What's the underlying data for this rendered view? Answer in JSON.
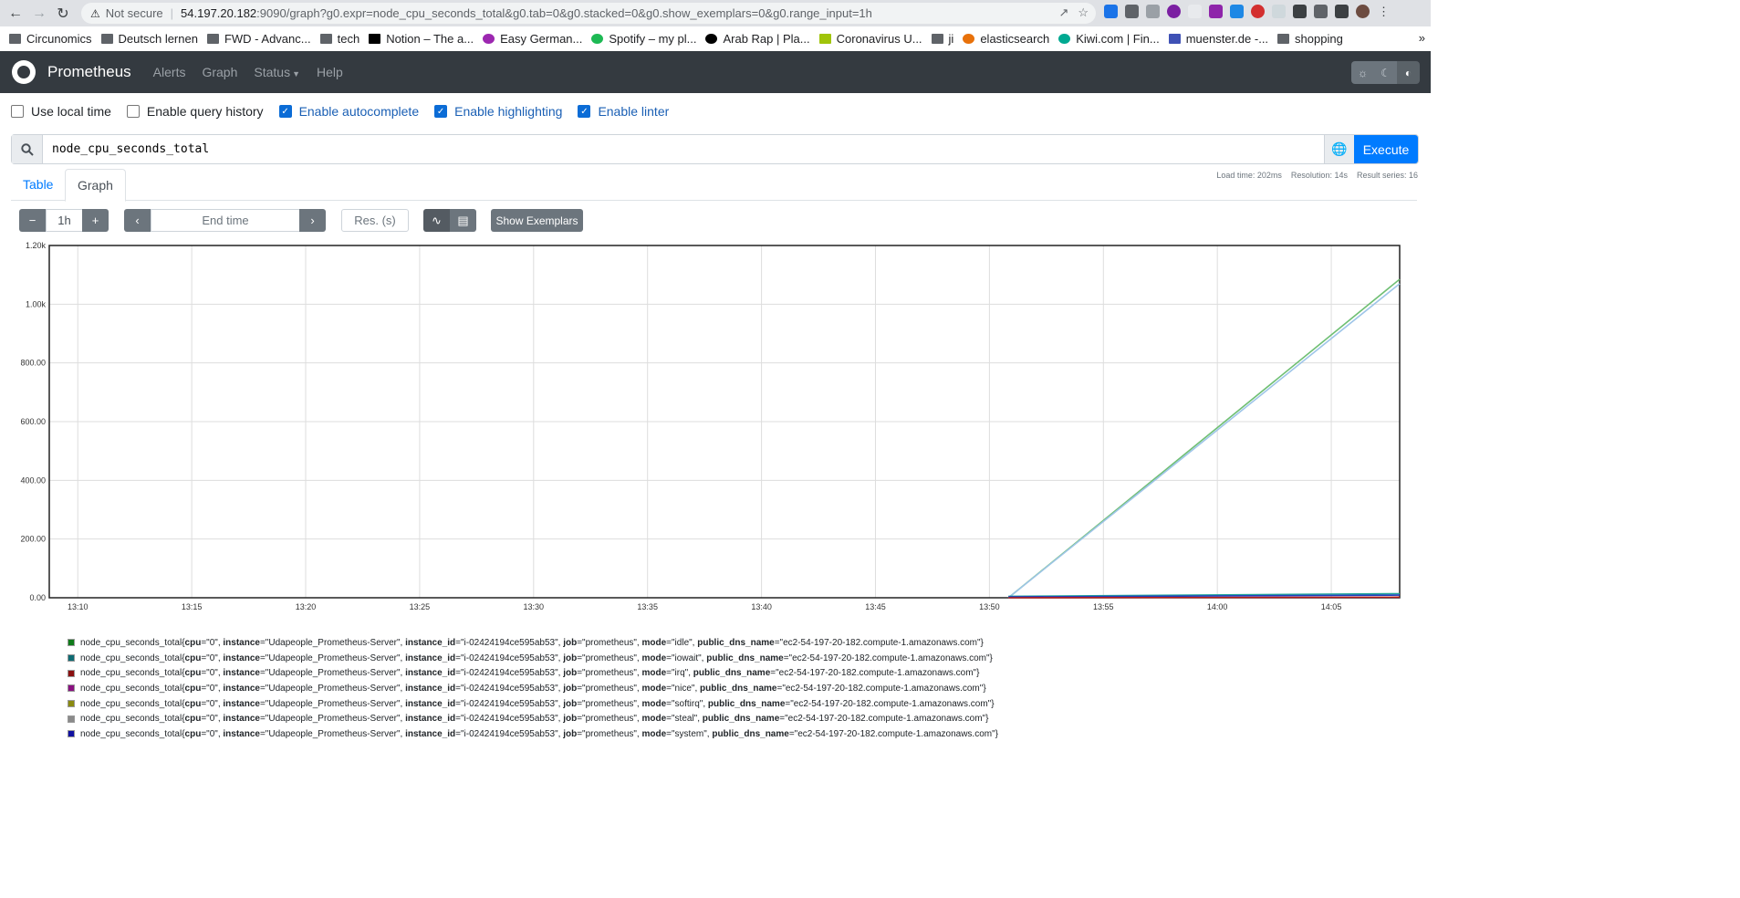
{
  "browser": {
    "security_label": "Not secure",
    "url_host": "54.197.20.182",
    "url_path": ":9090/graph?g0.expr=node_cpu_seconds_total&g0.tab=0&g0.stacked=0&g0.show_exemplars=0&g0.range_input=1h",
    "bookmarks": [
      "Circunomics",
      "Deutsch lernen",
      "FWD - Advanc...",
      "tech",
      "Notion – The a...",
      "Easy German...",
      "Spotify – my pl...",
      "Arab Rap | Pla...",
      "Coronavirus U...",
      "ji",
      "elasticsearch",
      "Kiwi.com | Fin...",
      "muenster.de -...",
      "shopping"
    ]
  },
  "navbar": {
    "brand": "Prometheus",
    "links": [
      "Alerts",
      "Graph",
      "Status",
      "Help"
    ]
  },
  "options": [
    {
      "label": "Use local time",
      "checked": false
    },
    {
      "label": "Enable query history",
      "checked": false
    },
    {
      "label": "Enable autocomplete",
      "checked": true
    },
    {
      "label": "Enable highlighting",
      "checked": true
    },
    {
      "label": "Enable linter",
      "checked": true
    }
  ],
  "query": {
    "expression": "node_cpu_seconds_total",
    "execute_label": "Execute"
  },
  "stats": {
    "load_time": "Load time: 202ms",
    "resolution": "Resolution: 14s",
    "result_series": "Result series: 16"
  },
  "tabs": [
    "Table",
    "Graph"
  ],
  "graph_controls": {
    "range": "1h",
    "end_time_placeholder": "End time",
    "resolution_placeholder": "Res. (s)",
    "show_exemplars": "Show Exemplars"
  },
  "chart_data": {
    "type": "line",
    "x_ticks": [
      "13:10",
      "13:15",
      "13:20",
      "13:25",
      "13:30",
      "13:35",
      "13:40",
      "13:45",
      "13:50",
      "13:55",
      "14:00",
      "14:05"
    ],
    "y_ticks": [
      "0.00",
      "200.00",
      "400.00",
      "600.00",
      "800.00",
      "1.00k",
      "1.20k"
    ],
    "ylim": [
      0,
      1200
    ],
    "grid": true,
    "series": [
      {
        "mode": "idle",
        "color": "#6fbf73",
        "x": [
          "13:50:50",
          "14:08"
        ],
        "y": [
          0,
          1085
        ]
      },
      {
        "mode": "idle",
        "color": "#9ec5e8",
        "x": [
          "13:50:50",
          "14:08"
        ],
        "y": [
          0,
          1070
        ]
      },
      {
        "mode": "iowait",
        "color": "#26a69a",
        "x": [
          "13:50:50",
          "14:08"
        ],
        "y": [
          5,
          14
        ]
      },
      {
        "mode": "system",
        "color": "#1f3fbf",
        "x": [
          "13:50:50",
          "14:08"
        ],
        "y": [
          3,
          9
        ]
      },
      {
        "mode": "irq",
        "color": "#b71c1c",
        "x": [
          "13:50:50",
          "14:08"
        ],
        "y": [
          0,
          2
        ]
      }
    ]
  },
  "legend": [
    {
      "color": "#0f7a1a",
      "metric": "node_cpu_seconds_total",
      "cpu": "\"0\"",
      "instance": "\"Udapeople_Prometheus-Server\"",
      "instance_id": "\"i-02424194ce595ab53\"",
      "job": "\"prometheus\"",
      "mode": "\"idle\"",
      "public_dns_name": "\"ec2-54-197-20-182.compute-1.amazonaws.com\""
    },
    {
      "color": "#0e6b73",
      "metric": "node_cpu_seconds_total",
      "cpu": "\"0\"",
      "instance": "\"Udapeople_Prometheus-Server\"",
      "instance_id": "\"i-02424194ce595ab53\"",
      "job": "\"prometheus\"",
      "mode": "\"iowait\"",
      "public_dns_name": "\"ec2-54-197-20-182.compute-1.amazonaws.com\""
    },
    {
      "color": "#8a1010",
      "metric": "node_cpu_seconds_total",
      "cpu": "\"0\"",
      "instance": "\"Udapeople_Prometheus-Server\"",
      "instance_id": "\"i-02424194ce595ab53\"",
      "job": "\"prometheus\"",
      "mode": "\"irq\"",
      "public_dns_name": "\"ec2-54-197-20-182.compute-1.amazonaws.com\""
    },
    {
      "color": "#8a1080",
      "metric": "node_cpu_seconds_total",
      "cpu": "\"0\"",
      "instance": "\"Udapeople_Prometheus-Server\"",
      "instance_id": "\"i-02424194ce595ab53\"",
      "job": "\"prometheus\"",
      "mode": "\"nice\"",
      "public_dns_name": "\"ec2-54-197-20-182.compute-1.amazonaws.com\""
    },
    {
      "color": "#8a8a10",
      "metric": "node_cpu_seconds_total",
      "cpu": "\"0\"",
      "instance": "\"Udapeople_Prometheus-Server\"",
      "instance_id": "\"i-02424194ce595ab53\"",
      "job": "\"prometheus\"",
      "mode": "\"softirq\"",
      "public_dns_name": "\"ec2-54-197-20-182.compute-1.amazonaws.com\""
    },
    {
      "color": "#8a8a8a",
      "metric": "node_cpu_seconds_total",
      "cpu": "\"0\"",
      "instance": "\"Udapeople_Prometheus-Server\"",
      "instance_id": "\"i-02424194ce595ab53\"",
      "job": "\"prometheus\"",
      "mode": "\"steal\"",
      "public_dns_name": "\"ec2-54-197-20-182.compute-1.amazonaws.com\""
    },
    {
      "color": "#1010a0",
      "metric": "node_cpu_seconds_total",
      "cpu": "\"0\"",
      "instance": "\"Udapeople_Prometheus-Server\"",
      "instance_id": "\"i-02424194ce595ab53\"",
      "job": "\"prometheus\"",
      "mode": "\"system\"",
      "public_dns_name": "\"ec2-54-197-20-182.compute-1.amazonaws.com\""
    }
  ]
}
